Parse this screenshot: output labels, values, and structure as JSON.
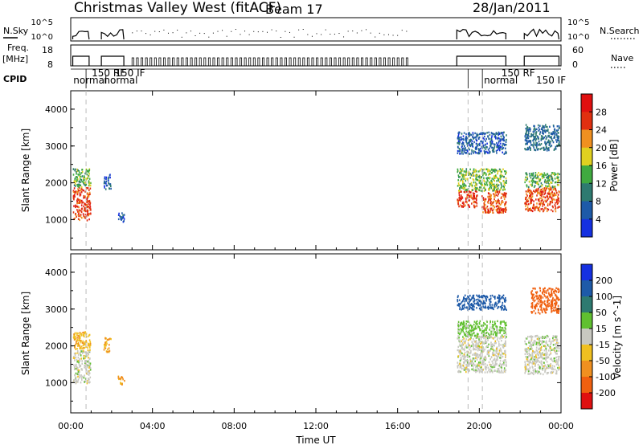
{
  "header": {
    "title": "Christmas Valley West (fitACF)",
    "beam": "Beam 17",
    "date": "28/Jan/2011"
  },
  "strip": {
    "nsky_label": "N.Sky",
    "nsky_ticks": [
      "10^5",
      "10^0"
    ],
    "nsearch_label": "N.Search",
    "nsearch_ticks": [
      "10^5",
      "10^0"
    ],
    "freq_label": "Freq.",
    "freq_unit": "[MHz]",
    "freq_ticks": [
      "18",
      "8"
    ],
    "nave_label": "Nave",
    "nave_ticks": [
      "60",
      "0"
    ],
    "cpid_label": "CPID",
    "cpid_entries": [
      {
        "text": "normal",
        "hour": 0.05
      },
      {
        "text": "150 RF",
        "hour": 0.95
      },
      {
        "text": "normal",
        "hour": 1.55
      },
      {
        "text": "150 IF",
        "hour": 2.1
      },
      {
        "text": "normal",
        "hour": 20.15
      },
      {
        "text": "150 RF",
        "hour": 21.0
      },
      {
        "text": "150 IF",
        "hour": 22.7
      }
    ]
  },
  "axes": {
    "x_ticks": [
      "00:00",
      "04:00",
      "08:00",
      "12:00",
      "16:00",
      "20:00",
      "00:00"
    ],
    "x_label": "Time UT",
    "y_label": "Slant Range [km]",
    "y_ticks": [
      "1000",
      "2000",
      "3000",
      "4000"
    ]
  },
  "power_scale": {
    "label": "Power [dB]",
    "ticks": [
      "4",
      "8",
      "12",
      "16",
      "20",
      "24",
      "28"
    ],
    "colors": [
      "#1530e0",
      "#1e5aa8",
      "#2e7a70",
      "#40aa40",
      "#e0d020",
      "#f09020",
      "#e03010",
      "#e01010"
    ]
  },
  "velocity_scale": {
    "label": "Velocity [m s^-1]",
    "ticks": [
      "200",
      "100",
      "50",
      "15",
      "-15",
      "-50",
      "-100",
      "-200"
    ],
    "colors": [
      "#1530e0",
      "#1e5aa8",
      "#2e7a70",
      "#60c030",
      "#c8c8c0",
      "#f0c020",
      "#f09020",
      "#f06010",
      "#e01010"
    ]
  },
  "chart_data": [
    {
      "type": "heatmap",
      "title": "",
      "xlabel": "Time UT",
      "ylabel": "Slant Range [km]",
      "xlim": [
        0,
        24
      ],
      "ylim": [
        180,
        4500
      ],
      "colorbar": {
        "label": "Power [dB]",
        "range": [
          0,
          32
        ]
      },
      "scatter_patches": [
        {
          "t": [
            0.1,
            0.95
          ],
          "r": [
            1000,
            1900
          ],
          "value": 26
        },
        {
          "t": [
            0.1,
            0.95
          ],
          "r": [
            1900,
            2400
          ],
          "value": 14
        },
        {
          "t": [
            1.6,
            1.95
          ],
          "r": [
            1850,
            2250
          ],
          "value": 6
        },
        {
          "t": [
            2.3,
            2.6
          ],
          "r": [
            950,
            1200
          ],
          "value": 5
        },
        {
          "t": [
            18.9,
            19.9
          ],
          "r": [
            1350,
            1800
          ],
          "value": 27
        },
        {
          "t": [
            18.9,
            21.3
          ],
          "r": [
            1800,
            2400
          ],
          "value": 15
        },
        {
          "t": [
            20.1,
            21.3
          ],
          "r": [
            1200,
            1800
          ],
          "value": 25
        },
        {
          "t": [
            22.2,
            23.9
          ],
          "r": [
            1250,
            1900
          ],
          "value": 25
        },
        {
          "t": [
            22.2,
            23.9
          ],
          "r": [
            1900,
            2300
          ],
          "value": 14
        },
        {
          "t": [
            18.9,
            21.3
          ],
          "r": [
            2800,
            3400
          ],
          "value": 6
        },
        {
          "t": [
            22.2,
            23.9
          ],
          "r": [
            2900,
            3600
          ],
          "value": 8
        }
      ],
      "vertical_markers_hours": [
        0.75,
        19.45,
        20.15
      ]
    },
    {
      "type": "heatmap",
      "title": "",
      "xlabel": "Time UT",
      "ylabel": "Slant Range [km]",
      "xlim": [
        0,
        24
      ],
      "ylim": [
        180,
        4500
      ],
      "colorbar": {
        "label": "Velocity [m s^-1]",
        "range": [
          -250,
          250
        ]
      },
      "scatter_patches": [
        {
          "t": [
            0.1,
            0.95
          ],
          "r": [
            1000,
            1900
          ],
          "value": 0
        },
        {
          "t": [
            0.1,
            0.95
          ],
          "r": [
            1900,
            2400
          ],
          "value": -40
        },
        {
          "t": [
            1.6,
            1.95
          ],
          "r": [
            1850,
            2250
          ],
          "value": -50
        },
        {
          "t": [
            2.3,
            2.6
          ],
          "r": [
            950,
            1200
          ],
          "value": -60
        },
        {
          "t": [
            18.9,
            21.3
          ],
          "r": [
            1300,
            2300
          ],
          "value": 0
        },
        {
          "t": [
            18.9,
            21.3
          ],
          "r": [
            2300,
            2700
          ],
          "value": 30
        },
        {
          "t": [
            22.2,
            23.9
          ],
          "r": [
            1250,
            2300
          ],
          "value": 0
        },
        {
          "t": [
            18.9,
            21.3
          ],
          "r": [
            3000,
            3400
          ],
          "value": 150
        },
        {
          "t": [
            22.5,
            23.9
          ],
          "r": [
            2900,
            3600
          ],
          "value": -150
        }
      ],
      "vertical_markers_hours": [
        0.75,
        19.45,
        20.15
      ]
    }
  ]
}
